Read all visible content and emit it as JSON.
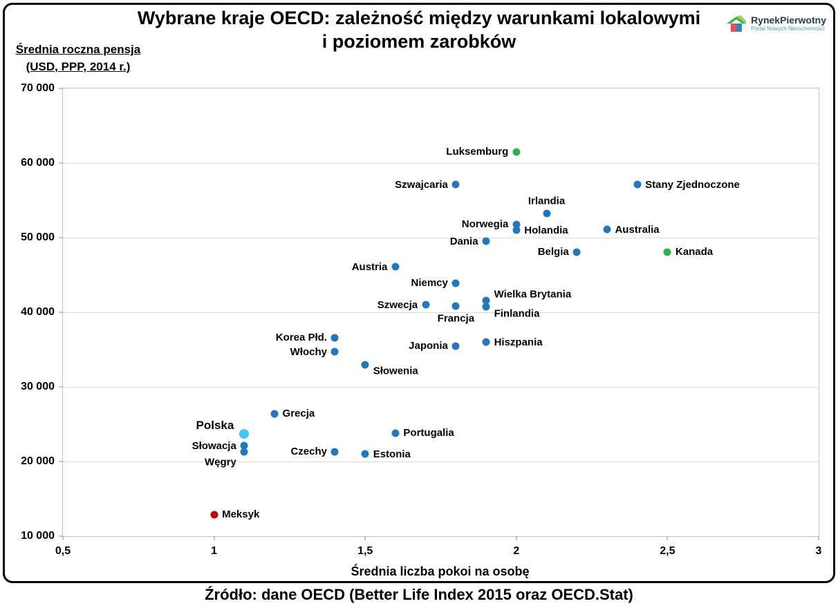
{
  "title": {
    "line1": "Wybrane kraje OECD: zależność między warunkami lokalowymi",
    "line2": "i poziomem zarobków"
  },
  "y_axis_title": {
    "line1": "Średnia roczna pensja",
    "line2": "(USD, PPP, 2014 r.)"
  },
  "x_axis_title": "Średnia liczba pokoi na osobę",
  "source": "Źródło: dane OECD (Better Life Index 2015 oraz OECD.Stat)",
  "logo": {
    "brand": "RynekPierwotny",
    "tagline": "Portal Nowych Nieruchomości"
  },
  "chart_data": {
    "type": "scatter",
    "title": "Wybrane kraje OECD: zależność między warunkami lokalowymi i poziomem zarobków",
    "xlabel": "Średnia liczba pokoi na osobę",
    "ylabel": "Średnia roczna pensja (USD, PPP, 2014 r.)",
    "xlim": [
      0.5,
      3
    ],
    "ylim": [
      10000,
      70000
    ],
    "grid": "horizontal",
    "legend": "none",
    "x_ticks": [
      {
        "v": 0.5,
        "label": "0,5"
      },
      {
        "v": 1,
        "label": "1"
      },
      {
        "v": 1.5,
        "label": "1,5"
      },
      {
        "v": 2,
        "label": "2"
      },
      {
        "v": 2.5,
        "label": "2,5"
      },
      {
        "v": 3,
        "label": "3"
      }
    ],
    "y_ticks": [
      {
        "v": 10000,
        "label": "10 000"
      },
      {
        "v": 20000,
        "label": "20 000"
      },
      {
        "v": 30000,
        "label": "30 000"
      },
      {
        "v": 40000,
        "label": "40 000"
      },
      {
        "v": 50000,
        "label": "50 000"
      },
      {
        "v": 60000,
        "label": "60 000"
      },
      {
        "v": 70000,
        "label": "70 000"
      }
    ],
    "colors": {
      "blue": "#2377bd",
      "green": "#2eb34b",
      "cyan": "#41c6f2",
      "red": "#c00000"
    },
    "points": [
      {
        "name": "Luksemburg",
        "x": 2.0,
        "y": 61500,
        "color": "green",
        "anchor": "left"
      },
      {
        "name": "Szwajcaria",
        "x": 1.8,
        "y": 57100,
        "anchor": "left"
      },
      {
        "name": "Stany Zjednoczone",
        "x": 2.4,
        "y": 57100,
        "anchor": "right"
      },
      {
        "name": "Irlandia",
        "x": 2.1,
        "y": 53200,
        "anchor": "top"
      },
      {
        "name": "Norwegia",
        "x": 2.0,
        "y": 51800,
        "anchor": "left"
      },
      {
        "name": "Holandia",
        "x": 2.0,
        "y": 51000,
        "anchor": "right"
      },
      {
        "name": "Australia",
        "x": 2.3,
        "y": 51100,
        "anchor": "right"
      },
      {
        "name": "Dania",
        "x": 1.9,
        "y": 49500,
        "anchor": "left"
      },
      {
        "name": "Belgia",
        "x": 2.2,
        "y": 48100,
        "anchor": "left"
      },
      {
        "name": "Kanada",
        "x": 2.5,
        "y": 48100,
        "color": "green",
        "anchor": "right"
      },
      {
        "name": "Austria",
        "x": 1.6,
        "y": 46100,
        "anchor": "left"
      },
      {
        "name": "Niemcy",
        "x": 1.8,
        "y": 43900,
        "anchor": "left"
      },
      {
        "name": "Wielka Brytania",
        "x": 1.9,
        "y": 41600,
        "anchor": "right-up"
      },
      {
        "name": "Szwecja",
        "x": 1.7,
        "y": 41000,
        "anchor": "left"
      },
      {
        "name": "Francja",
        "x": 1.8,
        "y": 40800,
        "anchor": "bottom"
      },
      {
        "name": "Finlandia",
        "x": 1.9,
        "y": 40700,
        "anchor": "right-down"
      },
      {
        "name": "Korea Płd.",
        "x": 1.4,
        "y": 36600,
        "anchor": "left"
      },
      {
        "name": "Hiszpania",
        "x": 1.9,
        "y": 36000,
        "anchor": "right"
      },
      {
        "name": "Japonia",
        "x": 1.8,
        "y": 35500,
        "anchor": "left"
      },
      {
        "name": "Włochy",
        "x": 1.4,
        "y": 34700,
        "anchor": "left"
      },
      {
        "name": "Słowenia",
        "x": 1.5,
        "y": 33000,
        "anchor": "right-down"
      },
      {
        "name": "Grecja",
        "x": 1.2,
        "y": 26400,
        "anchor": "right"
      },
      {
        "name": "Portugalia",
        "x": 1.6,
        "y": 23800,
        "anchor": "right"
      },
      {
        "name": "Polska",
        "x": 1.1,
        "y": 23700,
        "color": "cyan",
        "size": 14,
        "emph": true,
        "anchor": "left-up"
      },
      {
        "name": "Słowacja",
        "x": 1.1,
        "y": 22100,
        "anchor": "left"
      },
      {
        "name": "Węgry",
        "x": 1.1,
        "y": 21300,
        "anchor": "left-down"
      },
      {
        "name": "Czechy",
        "x": 1.4,
        "y": 21300,
        "anchor": "left"
      },
      {
        "name": "Estonia",
        "x": 1.5,
        "y": 21000,
        "anchor": "right"
      },
      {
        "name": "Meksyk",
        "x": 1.0,
        "y": 12900,
        "color": "red",
        "anchor": "right"
      }
    ]
  }
}
